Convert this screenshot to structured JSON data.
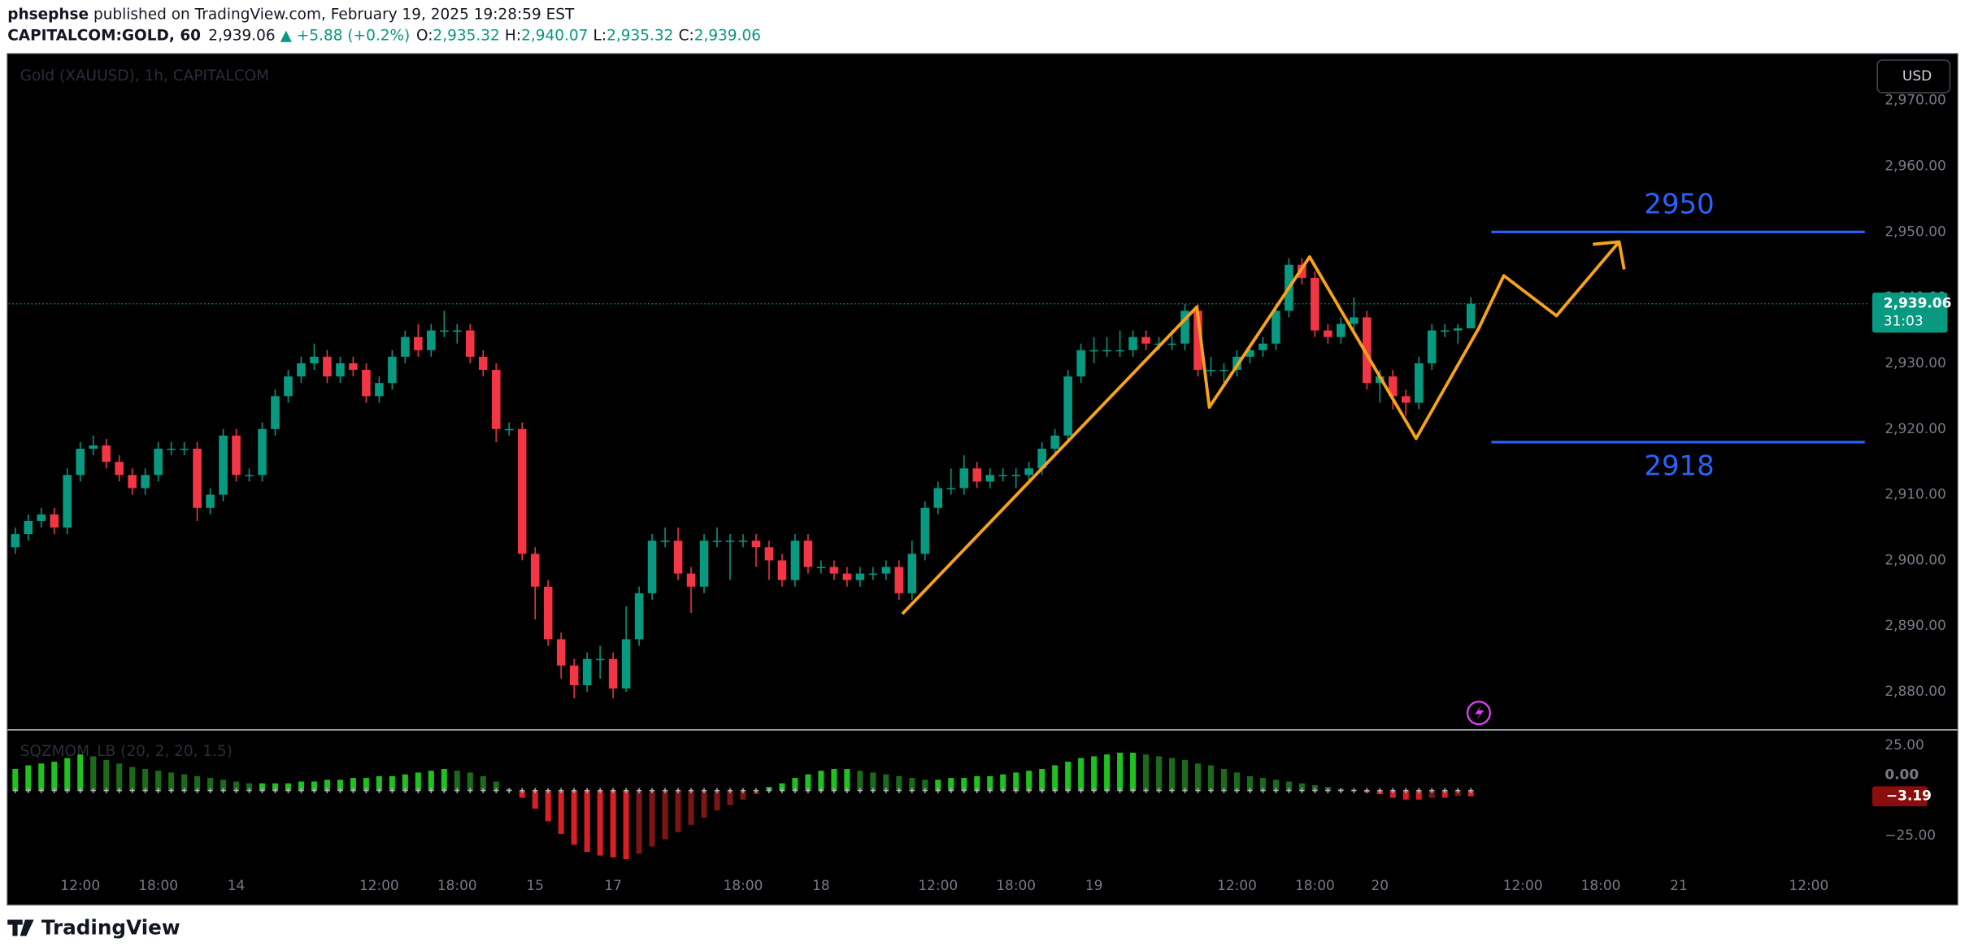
{
  "header": {
    "author": "phsephse",
    "byline": " published on TradingView.com, February 19, 2025 19:28:59 EST",
    "symbol": "CAPITALCOM:GOLD, 60",
    "price": "2,939.06",
    "change": "▲ +5.88 (+0.2%)",
    "ohlc": [
      {
        "key": "O:",
        "value": "2,935.32"
      },
      {
        "key": "H:",
        "value": "2,940.07"
      },
      {
        "key": "L:",
        "value": "2,935.32"
      },
      {
        "key": "C:",
        "value": "2,939.06"
      }
    ]
  },
  "footer": {
    "brand": "TradingView"
  },
  "chart_data": [
    {
      "type": "candlestick",
      "title": "Gold (XAUUSD), 1h, CAPITALCOM",
      "currency": "USD",
      "open": [
        2902,
        2904,
        2906,
        2907,
        2905,
        2913,
        2917,
        2917.5,
        2915,
        2913,
        2911,
        2913,
        2917,
        2917,
        2917,
        2908,
        2910,
        2919,
        2913,
        2913,
        2920,
        2925,
        2928,
        2930,
        2931,
        2928,
        2930,
        2929,
        2925,
        2927,
        2931,
        2934,
        2932,
        2935,
        2935,
        2935,
        2931,
        2929,
        2920,
        2920,
        2901,
        2896,
        2888,
        2884,
        2881,
        2885,
        2885,
        2880.5,
        2888,
        2895,
        2903,
        2903,
        2898,
        2896,
        2903,
        2903,
        2903,
        2903,
        2902,
        2900,
        2897,
        2903,
        2899,
        2899,
        2898,
        2897,
        2898,
        2898,
        2899,
        2895,
        2901,
        2908,
        2911,
        2911,
        2914,
        2912,
        2913,
        2913,
        2913,
        2914,
        2917,
        2919,
        2928,
        2932,
        2932,
        2932,
        2932,
        2934,
        2933,
        2933,
        2933,
        2938,
        2929,
        2929,
        2929,
        2931,
        2932,
        2933,
        2938,
        2945,
        2943,
        2935,
        2934,
        2936,
        2937,
        2927,
        2928,
        2925,
        2924,
        2930,
        2935,
        2935,
        2935.32
      ],
      "high": [
        2905,
        2907,
        2908,
        2908,
        2914,
        2918,
        2919,
        2918.5,
        2916,
        2914,
        2914,
        2918,
        2918,
        2918,
        2918,
        2911,
        2920,
        2920,
        2914,
        2921,
        2926,
        2929,
        2931,
        2933,
        2932,
        2931,
        2931,
        2930,
        2928,
        2932,
        2935,
        2936,
        2936,
        2938,
        2936,
        2936,
        2932,
        2930,
        2921,
        2921,
        2902,
        2897,
        2889,
        2885,
        2886,
        2887,
        2886,
        2893,
        2896,
        2904,
        2905,
        2905,
        2899,
        2904,
        2905,
        2904,
        2904,
        2904,
        2903,
        2901,
        2904,
        2904,
        2900,
        2900,
        2899,
        2899,
        2899,
        2900,
        2900,
        2903,
        2909,
        2912,
        2914,
        2916,
        2915,
        2914,
        2914,
        2914,
        2915,
        2918,
        2920,
        2929,
        2933,
        2934,
        2934,
        2935,
        2935,
        2935,
        2934,
        2935,
        2939,
        2939,
        2931,
        2930,
        2932,
        2933,
        2934,
        2939,
        2946,
        2946,
        2944,
        2936,
        2937,
        2940,
        2938,
        2929,
        2929,
        2926,
        2931,
        2936,
        2936,
        2936,
        2940.07
      ],
      "low": [
        2901,
        2903,
        2905,
        2904,
        2904,
        2912,
        2916,
        2914,
        2912,
        2910,
        2910,
        2912,
        2916,
        2916,
        2906,
        2907,
        2909,
        2912,
        2912,
        2912,
        2919,
        2924,
        2927,
        2929,
        2927,
        2927,
        2928,
        2924,
        2924,
        2926,
        2930,
        2931,
        2931,
        2934,
        2933,
        2930,
        2928,
        2918,
        2919,
        2900,
        2891,
        2887,
        2882,
        2879,
        2880,
        2882,
        2879,
        2880,
        2887,
        2894,
        2902,
        2897,
        2892,
        2895,
        2902,
        2897,
        2902,
        2899,
        2897,
        2896,
        2896,
        2898,
        2898,
        2897,
        2896,
        2896,
        2897,
        2897,
        2894,
        2894,
        2900,
        2907,
        2910,
        2910,
        2911,
        2911,
        2912,
        2911,
        2912,
        2913,
        2916,
        2918,
        2927,
        2930,
        2931,
        2931,
        2931,
        2932,
        2932,
        2932,
        2932,
        2928,
        2928,
        2927,
        2928,
        2930,
        2931,
        2932,
        2937,
        2942,
        2934,
        2933,
        2933,
        2935,
        2926,
        2924,
        2923,
        2922,
        2923,
        2929,
        2934,
        2933,
        2935.32
      ],
      "close": [
        2904,
        2906,
        2907,
        2905,
        2913,
        2917,
        2917.5,
        2915,
        2913,
        2911,
        2913,
        2917,
        2917,
        2917,
        2908,
        2910,
        2919,
        2913,
        2913,
        2920,
        2925,
        2928,
        2930,
        2931,
        2928,
        2930,
        2929,
        2925,
        2927,
        2931,
        2934,
        2932,
        2935,
        2935,
        2935,
        2931,
        2929,
        2920,
        2920,
        2901,
        2896,
        2888,
        2884,
        2881,
        2885,
        2885,
        2880.5,
        2888,
        2895,
        2903,
        2903,
        2898,
        2896,
        2903,
        2903,
        2903,
        2903,
        2902,
        2900,
        2897,
        2903,
        2899,
        2899,
        2898,
        2897,
        2898,
        2898,
        2899,
        2895,
        2901,
        2908,
        2911,
        2911,
        2914,
        2912,
        2913,
        2913,
        2913,
        2914,
        2917,
        2919,
        2928,
        2932,
        2932,
        2932,
        2932,
        2934,
        2933,
        2933,
        2933,
        2938,
        2929,
        2929,
        2929,
        2931,
        2932,
        2933,
        2938,
        2945,
        2943,
        2935,
        2934,
        2936,
        2937,
        2927,
        2928,
        2925,
        2924,
        2930,
        2935,
        2935,
        2935.32,
        2939.06
      ],
      "colors": {
        "up": "#089981",
        "down": "#f23645"
      },
      "xlim": [
        -0.5,
        142.5
      ],
      "xticks": [
        {
          "value": 5,
          "label": "12:00"
        },
        {
          "value": 11,
          "label": "18:00"
        },
        {
          "value": 17,
          "label": "14"
        },
        {
          "value": 28,
          "label": "12:00"
        },
        {
          "value": 34,
          "label": "18:00"
        },
        {
          "value": 40,
          "label": "15"
        },
        {
          "value": 46,
          "label": "17"
        },
        {
          "value": 56,
          "label": "18:00"
        },
        {
          "value": 62,
          "label": "18"
        },
        {
          "value": 71,
          "label": "12:00"
        },
        {
          "value": 77,
          "label": "18:00"
        },
        {
          "value": 83,
          "label": "19"
        },
        {
          "value": 94,
          "label": "12:00"
        },
        {
          "value": 100,
          "label": "18:00"
        },
        {
          "value": 105,
          "label": "20"
        },
        {
          "value": 116,
          "label": "12:00"
        },
        {
          "value": 122,
          "label": "18:00"
        },
        {
          "value": 128,
          "label": "21"
        },
        {
          "value": 138,
          "label": "12:00"
        }
      ],
      "ylim": [
        2874.3,
        2977.1
      ],
      "yticks": [
        {
          "value": 2880,
          "label": "2,880.00"
        },
        {
          "value": 2890,
          "label": "2,890.00"
        },
        {
          "value": 2900,
          "label": "2,900.00"
        },
        {
          "value": 2910,
          "label": "2,910.00"
        },
        {
          "value": 2920,
          "label": "2,920.00"
        },
        {
          "value": 2930,
          "label": "2,930.00"
        },
        {
          "value": 2940,
          "label": "2,940.00"
        },
        {
          "value": 2950,
          "label": "2,950.00"
        },
        {
          "value": 2960,
          "label": "2,960.00"
        },
        {
          "value": 2970,
          "label": "2,970.00"
        }
      ],
      "levels": [
        2950,
        2918
      ],
      "level_color": "#2962ff",
      "last_price_label": "2,939.06",
      "countdown": "31:03"
    },
    {
      "type": "bar",
      "title": "SQZMOM_LB (20, 2, 20, 1.5)",
      "values": [
        12,
        14,
        15,
        16,
        18,
        20,
        19,
        17,
        15,
        13,
        12,
        11,
        10,
        9,
        8,
        7,
        6,
        5,
        4,
        4,
        4,
        4,
        5,
        5,
        6,
        6,
        7,
        7,
        8,
        8,
        9,
        10,
        11,
        12,
        11,
        10,
        8,
        5,
        1,
        -4,
        -10,
        -17,
        -24,
        -30,
        -34,
        -36,
        -37,
        -38,
        -35,
        -31,
        -27,
        -23,
        -19,
        -15,
        -11,
        -8,
        -5,
        -2,
        2,
        4,
        7,
        9,
        11,
        12,
        12,
        11,
        10,
        9,
        8,
        7,
        6,
        6,
        7,
        7,
        8,
        8,
        9,
        10,
        11,
        12,
        14,
        16,
        18,
        19,
        20,
        21,
        21,
        20,
        19,
        18,
        17,
        15,
        14,
        12,
        10,
        8,
        7,
        6,
        5,
        4,
        3,
        2,
        1,
        0.5,
        -1,
        -2,
        -4,
        -5,
        -5,
        -4,
        -4,
        -3,
        -3.19
      ],
      "ylim": [
        -63.2,
        33.3
      ],
      "yticks": [
        {
          "value": -25,
          "label": "−25.00"
        },
        {
          "value": 0,
          "label": "0.00"
        },
        {
          "value": 25,
          "label": "25.00"
        }
      ],
      "current_label": "−3.19"
    }
  ]
}
